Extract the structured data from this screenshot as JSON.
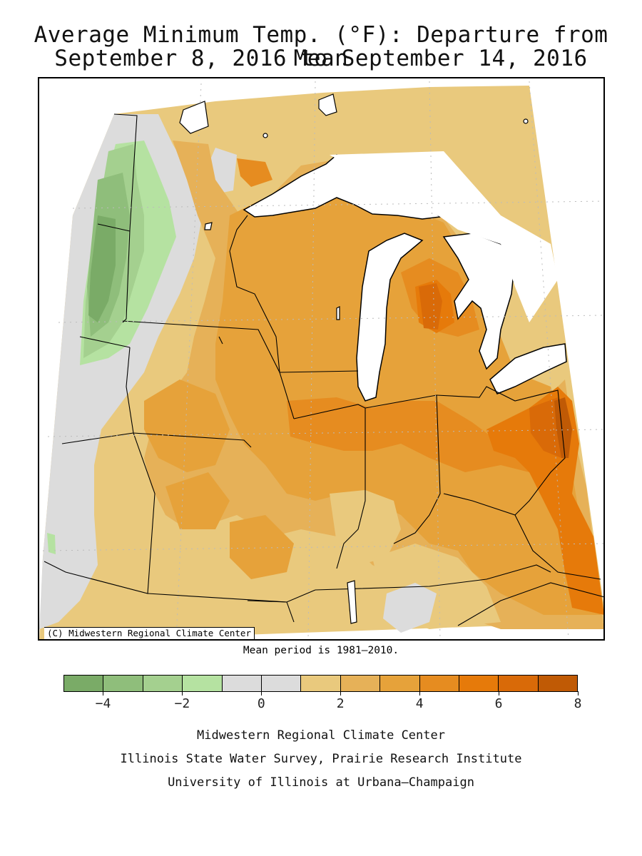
{
  "title": {
    "line1": "Average Minimum Temp. (°F): Departure from Mean",
    "line2": "September 8, 2016 to September 14, 2016"
  },
  "map": {
    "copyright": "(C) Midwestern Regional Climate Center",
    "mean_period": "Mean period is 1981–2010.",
    "water_color": "#ffffff",
    "region_colors": {
      "dark_green": "#7aab67",
      "green": "#8fbe7b",
      "light_green": "#a4d08f",
      "pale_green": "#b5e2a1",
      "gray": "#dcdcdc",
      "tan": "#e9c97d",
      "light_orange": "#e6b158",
      "orange": "#e6a23a",
      "deep_orange": "#e68c20",
      "bright_orange": "#e67a0a",
      "burnt_orange": "#d96a08",
      "dark_orange": "#c05a05"
    }
  },
  "legend": {
    "colors": [
      "#7aab67",
      "#8fbe7b",
      "#a4d08f",
      "#b5e2a1",
      "#dcdcdc",
      "#dcdcdc",
      "#e9c97d",
      "#e6b158",
      "#e6a23a",
      "#e68c20",
      "#e67a0a",
      "#d96a08",
      "#c05a05"
    ],
    "tick_labels": [
      "−4",
      "−2",
      "0",
      "2",
      "4",
      "6",
      "8"
    ],
    "tick_values": [
      -4,
      -2,
      0,
      2,
      4,
      6,
      8
    ],
    "min": -5,
    "max": 8
  },
  "credits": {
    "line1": "Midwestern Regional Climate Center",
    "line2": "Illinois State Water Survey, Prairie Research Institute",
    "line3": "University of Illinois at Urbana–Champaign"
  }
}
